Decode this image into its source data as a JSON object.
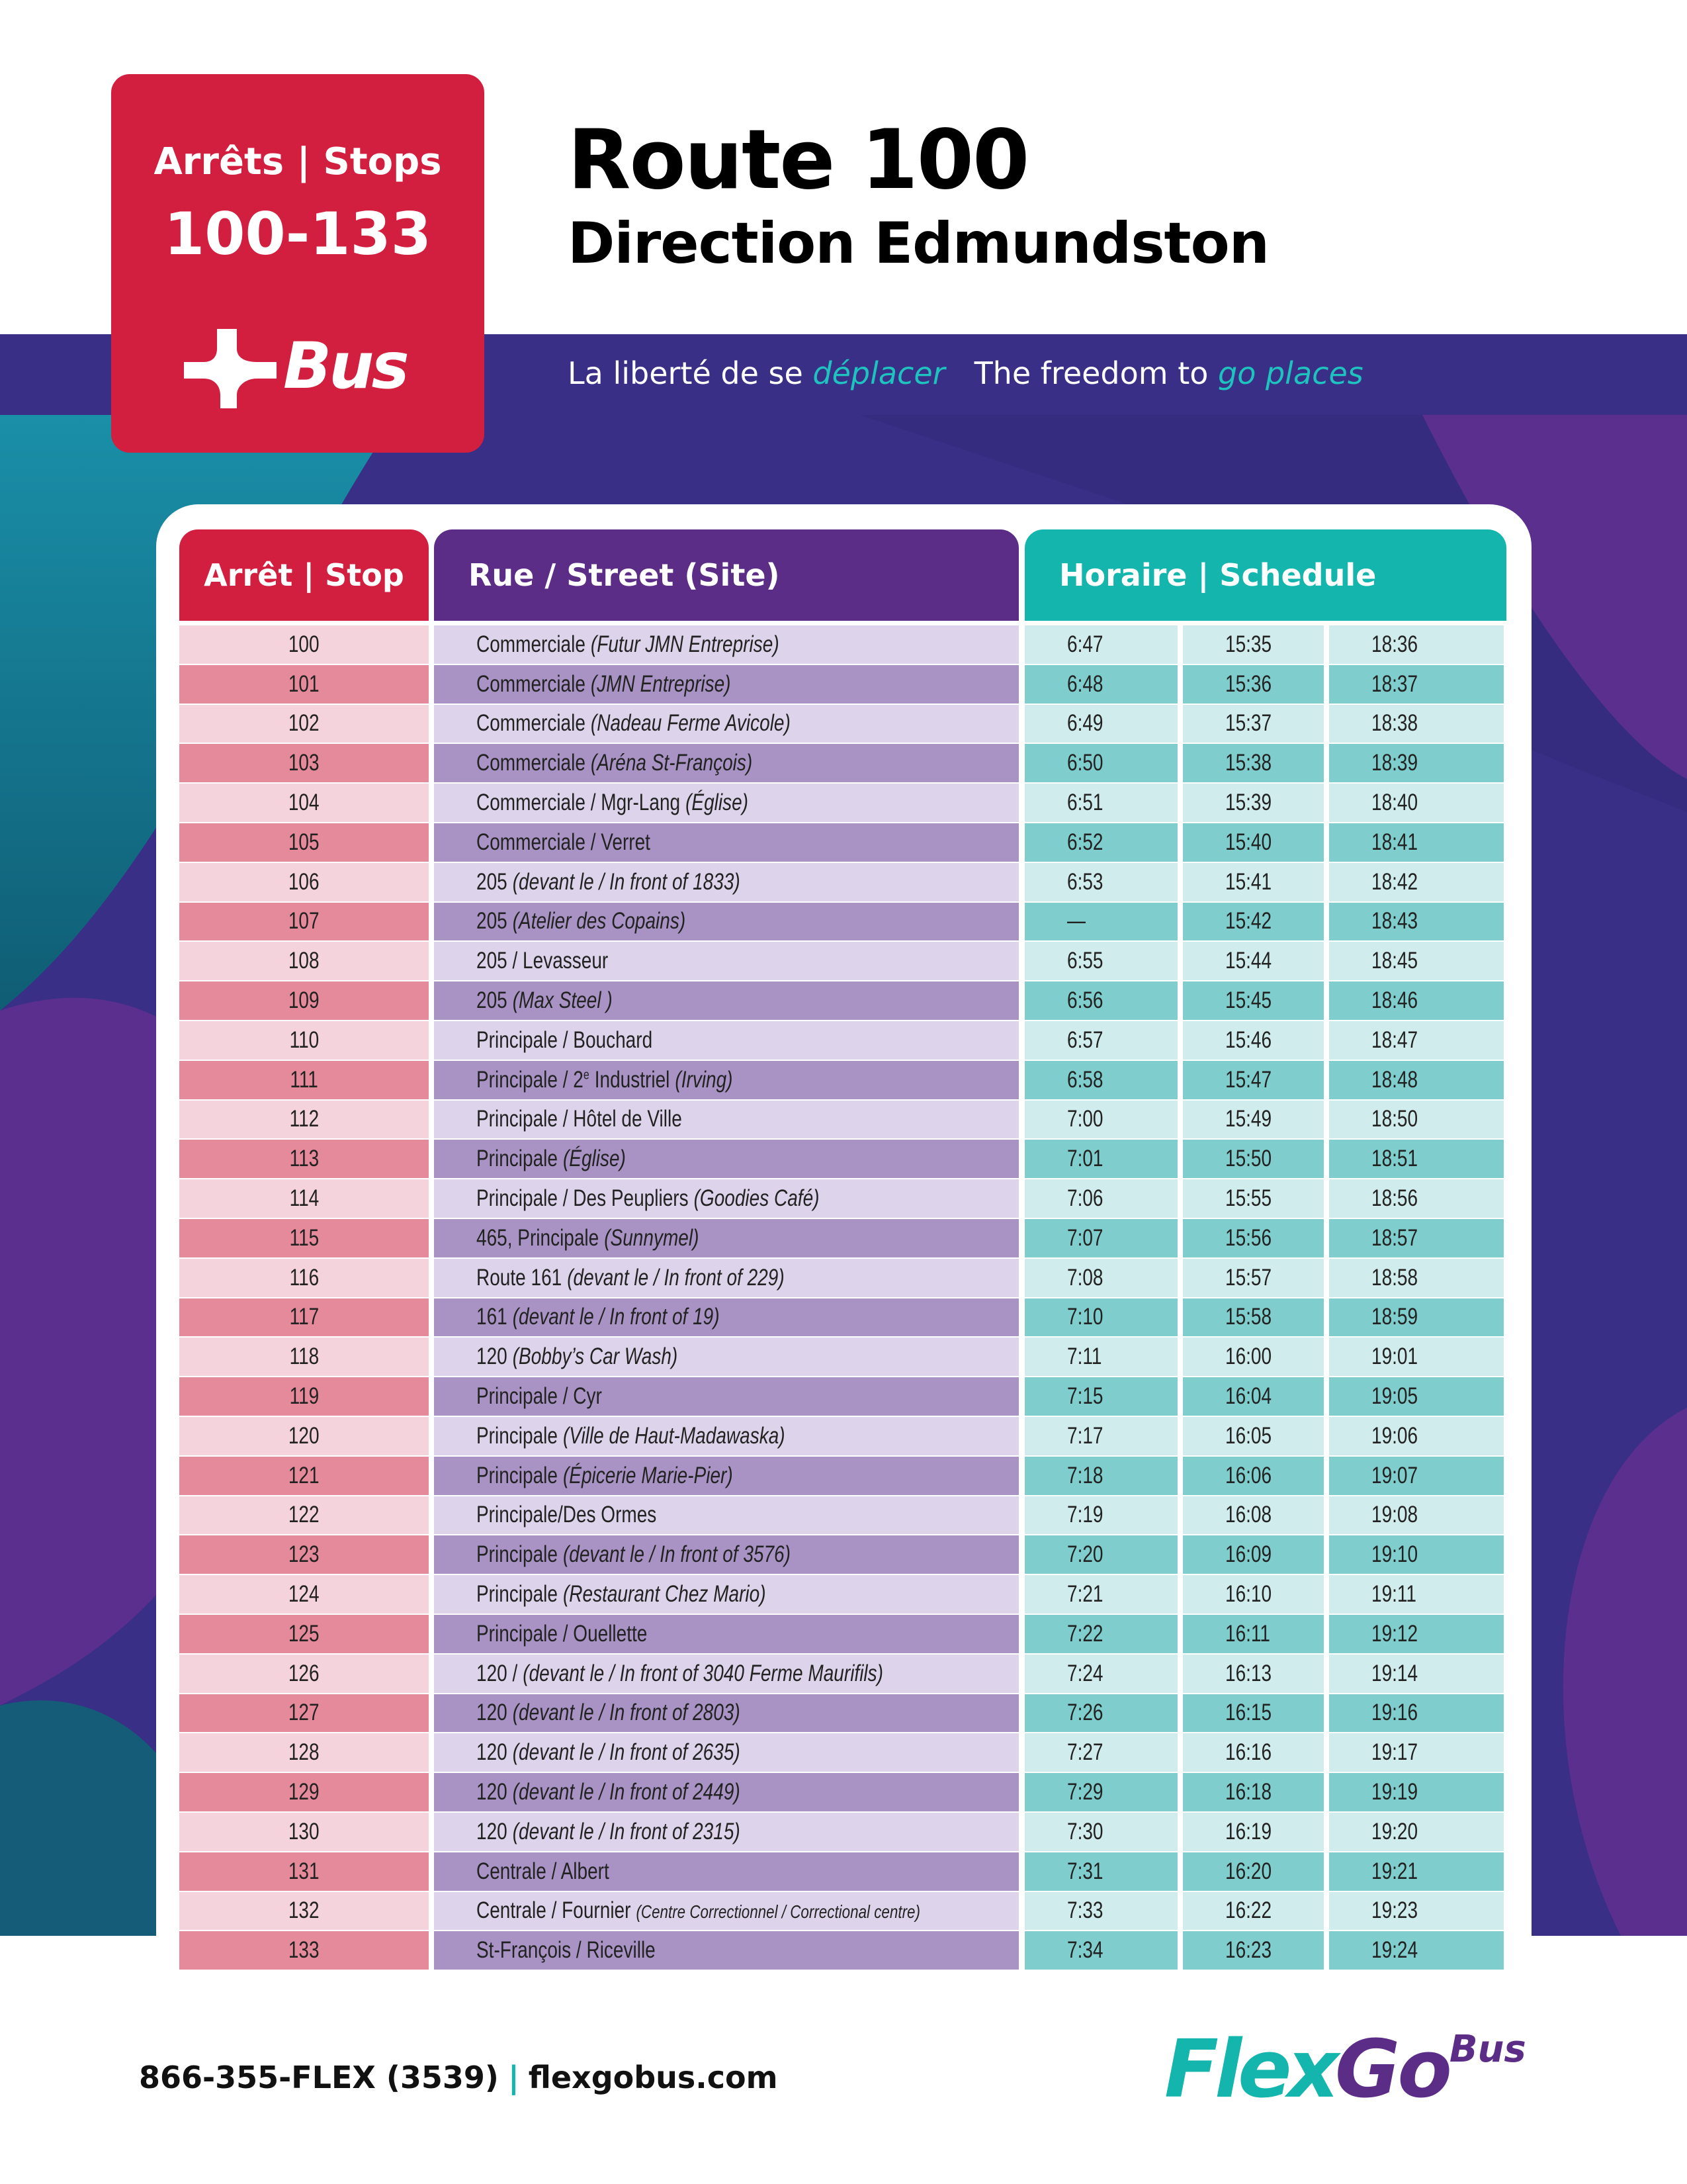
{
  "header": {
    "badge": {
      "line1": "Arrêts | Stops",
      "line2": "100-133",
      "logo": "Bus"
    },
    "title": "Route 100",
    "subtitle": "Direction Edmundston",
    "tagline": {
      "fr": "La liberté de se",
      "fr_accent": "déplacer",
      "en": "The freedom to",
      "en_accent": "go places"
    }
  },
  "table": {
    "headers": [
      "Arrêt | Stop",
      "Rue / Street (Site)",
      "Horaire | Schedule"
    ],
    "rows": [
      {
        "stop": "100",
        "street": "Commerciale",
        "site": "(Futur JMN Entreprise)",
        "times": [
          "6:47",
          "15:35",
          "18:36"
        ]
      },
      {
        "stop": "101",
        "street": "Commerciale",
        "site": "(JMN Entreprise)",
        "times": [
          "6:48",
          "15:36",
          "18:37"
        ]
      },
      {
        "stop": "102",
        "street": "Commerciale",
        "site": "(Nadeau Ferme Avicole)",
        "times": [
          "6:49",
          "15:37",
          "18:38"
        ]
      },
      {
        "stop": "103",
        "street": "Commerciale",
        "site": "(Aréna St-François)",
        "times": [
          "6:50",
          "15:38",
          "18:39"
        ]
      },
      {
        "stop": "104",
        "street": "Commerciale / Mgr-Lang",
        "site": "(Église)",
        "times": [
          "6:51",
          "15:39",
          "18:40"
        ]
      },
      {
        "stop": "105",
        "street": "Commerciale / Verret",
        "times": [
          "6:52",
          "15:40",
          "18:41"
        ]
      },
      {
        "stop": "106",
        "street": "205",
        "site": "(devant le / In front of 1833)",
        "times": [
          "6:53",
          "15:41",
          "18:42"
        ]
      },
      {
        "stop": "107",
        "street": "205",
        "site": "(Atelier des Copains)",
        "times": [
          "—",
          "15:42",
          "18:43"
        ]
      },
      {
        "stop": "108",
        "street": "205 / Levasseur",
        "times": [
          "6:55",
          "15:44",
          "18:45"
        ]
      },
      {
        "stop": "109",
        "street": "205",
        "site": "(Max Steel )",
        "times": [
          "6:56",
          "15:45",
          "18:46"
        ]
      },
      {
        "stop": "110",
        "street": "Principale / Bouchard",
        "times": [
          "6:57",
          "15:46",
          "18:47"
        ]
      },
      {
        "stop": "111",
        "street": "Principale / 2",
        "ordinal": "e",
        "street_end": "Industriel",
        "site": "(Irving)",
        "times": [
          "6:58",
          "15:47",
          "18:48"
        ]
      },
      {
        "stop": "112",
        "street": "Principale / Hôtel de Ville",
        "times": [
          "7:00",
          "15:49",
          "18:50"
        ]
      },
      {
        "stop": "113",
        "street": "Principale",
        "site": "(Église)",
        "times": [
          "7:01",
          "15:50",
          "18:51"
        ]
      },
      {
        "stop": "114",
        "street": "Principale / Des Peupliers",
        "site": "(Goodies Café)",
        "times": [
          "7:06",
          "15:55",
          "18:56"
        ]
      },
      {
        "stop": "115",
        "street": "465, Principale",
        "site": "(Sunnymel)",
        "times": [
          "7:07",
          "15:56",
          "18:57"
        ]
      },
      {
        "stop": "116",
        "street": "Route 161",
        "site": "(devant le / In front of 229)",
        "times": [
          "7:08",
          "15:57",
          "18:58"
        ]
      },
      {
        "stop": "117",
        "street": "161",
        "site": "(devant le / In front of 19)",
        "times": [
          "7:10",
          "15:58",
          "18:59"
        ]
      },
      {
        "stop": "118",
        "street": "120",
        "site": "(Bobby’s Car Wash)",
        "times": [
          "7:11",
          "16:00",
          "19:01"
        ]
      },
      {
        "stop": "119",
        "street": "Principale / Cyr",
        "times": [
          "7:15",
          "16:04",
          "19:05"
        ]
      },
      {
        "stop": "120",
        "street": "Principale",
        "site": "(Ville de Haut-Madawaska)",
        "times": [
          "7:17",
          "16:05",
          "19:06"
        ]
      },
      {
        "stop": "121",
        "street": "Principale",
        "site": "(Épicerie Marie-Pier)",
        "times": [
          "7:18",
          "16:06",
          "19:07"
        ]
      },
      {
        "stop": "122",
        "street": "Principale/Des Ormes",
        "times": [
          "7:19",
          "16:08",
          "19:08"
        ]
      },
      {
        "stop": "123",
        "street": "Principale",
        "site": "(devant le / In front of 3576)",
        "times": [
          "7:20",
          "16:09",
          "19:10"
        ]
      },
      {
        "stop": "124",
        "street": "Principale",
        "site": "(Restaurant Chez Mario)",
        "times": [
          "7:21",
          "16:10",
          "19:11"
        ]
      },
      {
        "stop": "125",
        "street": "Principale / Ouellette",
        "times": [
          "7:22",
          "16:11",
          "19:12"
        ]
      },
      {
        "stop": "126",
        "street": "120 /",
        "site": "(devant le / In front of 3040 Ferme Maurifils)",
        "times": [
          "7:24",
          "16:13",
          "19:14"
        ]
      },
      {
        "stop": "127",
        "street": "120",
        "site": "(devant le / In front of 2803)",
        "times": [
          "7:26",
          "16:15",
          "19:16"
        ]
      },
      {
        "stop": "128",
        "street": "120",
        "site": "(devant le / In front of 2635)",
        "times": [
          "7:27",
          "16:16",
          "19:17"
        ]
      },
      {
        "stop": "129",
        "street": "120",
        "site": "(devant le / In front of 2449)",
        "times": [
          "7:29",
          "16:18",
          "19:19"
        ]
      },
      {
        "stop": "130",
        "street": "120",
        "site": "(devant le / In front of 2315)",
        "times": [
          "7:30",
          "16:19",
          "19:20"
        ]
      },
      {
        "stop": "131",
        "street": "Centrale / Albert",
        "times": [
          "7:31",
          "16:20",
          "19:21"
        ]
      },
      {
        "stop": "132",
        "street": "Centrale / Fournier",
        "site": "(Centre Correctionnel / Correctional centre)",
        "times": [
          "7:33",
          "16:22",
          "19:23"
        ]
      },
      {
        "stop": "133",
        "street": "St-François / Riceville",
        "times": [
          "7:34",
          "16:23",
          "19:24"
        ]
      }
    ]
  },
  "footer": {
    "phone": "866-355-FLEX (3539)",
    "separator": "|",
    "website": "flexgobus.com",
    "logo": [
      "Flex",
      "Go",
      "Bus"
    ]
  }
}
